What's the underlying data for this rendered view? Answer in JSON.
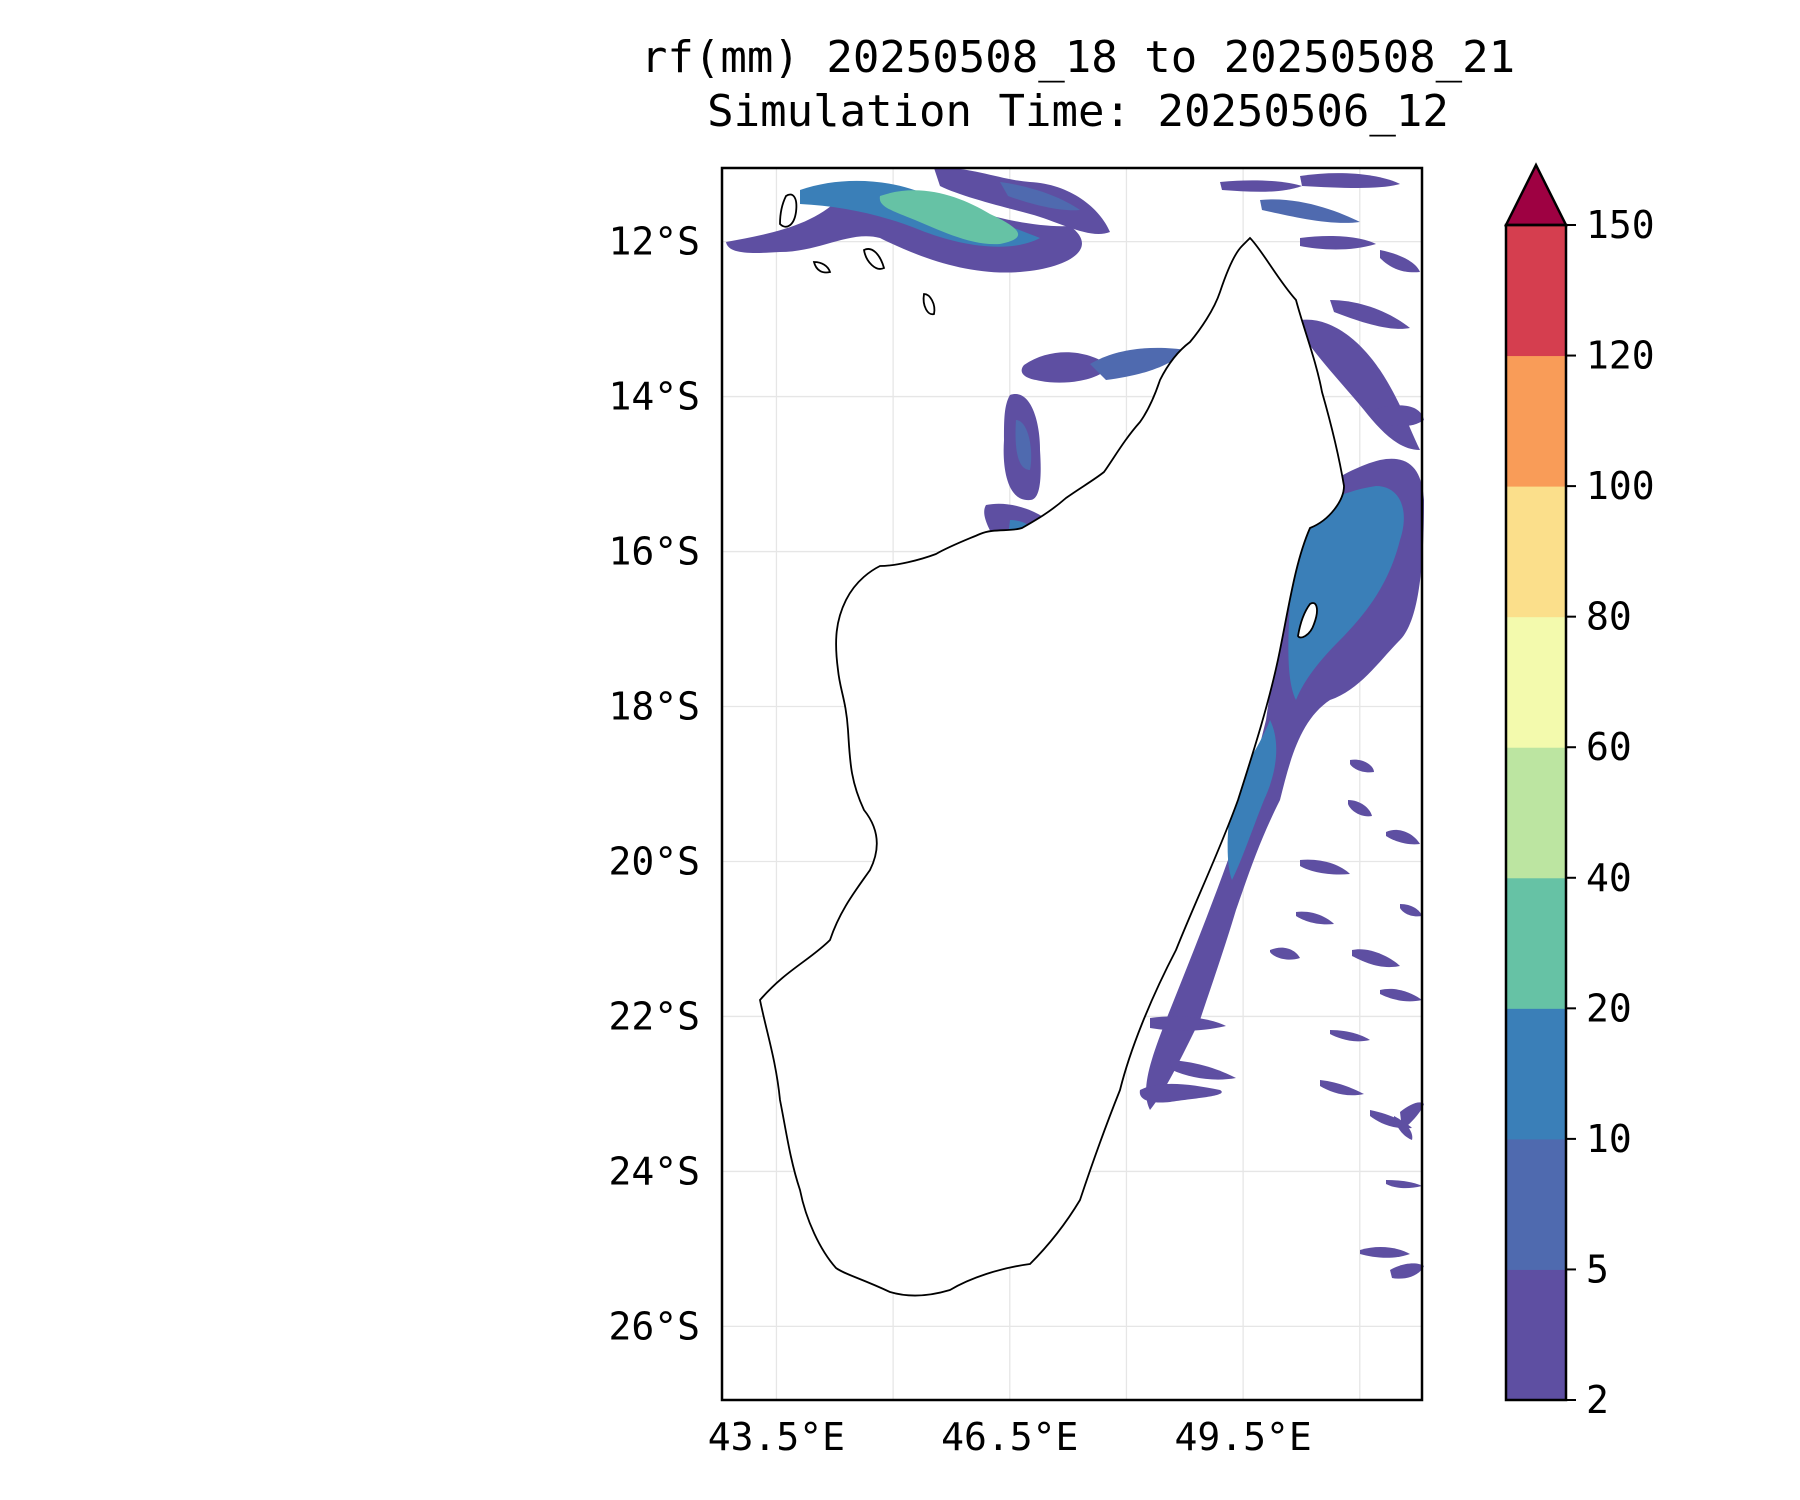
{
  "title": {
    "line1": "rf(mm) 20250508_18 to 20250508_21",
    "line2": "Simulation Time: 20250506_12"
  },
  "map": {
    "lon_range": [
      42.8,
      51.8
    ],
    "lat_range": [
      -26.95,
      -11.05
    ],
    "lat_ticks": [
      {
        "value": -12,
        "label": "12°S"
      },
      {
        "value": -14,
        "label": "14°S"
      },
      {
        "value": -16,
        "label": "16°S"
      },
      {
        "value": -18,
        "label": "18°S"
      },
      {
        "value": -20,
        "label": "20°S"
      },
      {
        "value": -22,
        "label": "22°S"
      },
      {
        "value": -24,
        "label": "24°S"
      },
      {
        "value": -26,
        "label": "26°S"
      }
    ],
    "lon_ticks": [
      {
        "value": 43.5,
        "label": "43.5°E"
      },
      {
        "value": 46.5,
        "label": "46.5°E"
      },
      {
        "value": 49.5,
        "label": "49.5°E"
      }
    ],
    "lon_gridlines": [
      43.5,
      45.0,
      46.5,
      48.0,
      49.5,
      51.0
    ],
    "coastline_color": "#000000"
  },
  "colorbar": {
    "boundaries": [
      2,
      5,
      10,
      20,
      40,
      60,
      80,
      100,
      120,
      150
    ],
    "labels": [
      "2",
      "5",
      "10",
      "20",
      "40",
      "60",
      "80",
      "100",
      "120",
      "150"
    ],
    "colors": [
      "#5e4fa2",
      "#4f6aaf",
      "#3a7fb8",
      "#66c2a5",
      "#bce5a1",
      "#f3faad",
      "#fbdf8b",
      "#f99c58",
      "#d53e4f"
    ],
    "extend_color": "#9e0142",
    "extend": "max"
  }
}
